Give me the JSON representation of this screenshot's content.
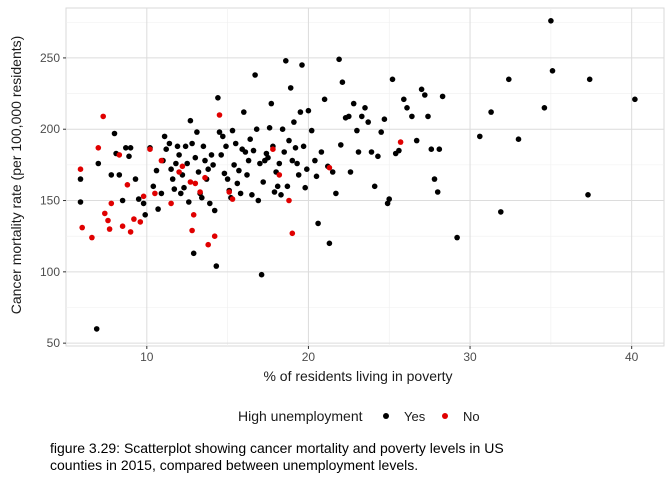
{
  "chart_data": {
    "type": "scatter",
    "xlabel": "% of residents living in poverty",
    "ylabel": "Cancer mortality rate (per 100,000 residents)",
    "xlim": [
      5,
      42
    ],
    "ylim": [
      48,
      285
    ],
    "x_ticks": [
      10,
      20,
      30,
      40
    ],
    "y_ticks": [
      50,
      100,
      150,
      200,
      250
    ],
    "x_tick_labels": [
      "10",
      "20",
      "30",
      "40"
    ],
    "y_tick_labels": [
      "50",
      "100",
      "150",
      "200",
      "250"
    ],
    "grid": true,
    "legend": {
      "title": "High unemployment",
      "position": "bottom",
      "entries": [
        {
          "label": "Yes",
          "color": "#000000"
        },
        {
          "label": "No",
          "color": "#e00000"
        }
      ]
    },
    "series": [
      {
        "name": "Yes",
        "color": "#000000",
        "points": [
          [
            6.9,
            60
          ],
          [
            5.9,
            165
          ],
          [
            5.9,
            149
          ],
          [
            7.0,
            176
          ],
          [
            7.8,
            168
          ],
          [
            8.0,
            197
          ],
          [
            8.1,
            183
          ],
          [
            8.3,
            168
          ],
          [
            8.5,
            150
          ],
          [
            8.7,
            187
          ],
          [
            8.9,
            181
          ],
          [
            9.0,
            187
          ],
          [
            9.3,
            165
          ],
          [
            9.5,
            151
          ],
          [
            9.8,
            148
          ],
          [
            9.9,
            140
          ],
          [
            10.2,
            187
          ],
          [
            10.4,
            160
          ],
          [
            10.6,
            171
          ],
          [
            10.7,
            144
          ],
          [
            10.9,
            155
          ],
          [
            11.0,
            178
          ],
          [
            11.1,
            195
          ],
          [
            11.2,
            186
          ],
          [
            11.4,
            190
          ],
          [
            11.5,
            172
          ],
          [
            11.6,
            165
          ],
          [
            11.7,
            158
          ],
          [
            11.8,
            176
          ],
          [
            11.9,
            188
          ],
          [
            12.0,
            182
          ],
          [
            12.1,
            155
          ],
          [
            12.2,
            168
          ],
          [
            12.3,
            159
          ],
          [
            12.4,
            188
          ],
          [
            12.5,
            176
          ],
          [
            12.6,
            149
          ],
          [
            12.7,
            206
          ],
          [
            12.8,
            190
          ],
          [
            12.9,
            113
          ],
          [
            13.0,
            180
          ],
          [
            13.1,
            198
          ],
          [
            13.2,
            170
          ],
          [
            13.3,
            155
          ],
          [
            13.4,
            152
          ],
          [
            13.5,
            188
          ],
          [
            13.6,
            178
          ],
          [
            13.7,
            165
          ],
          [
            13.8,
            172
          ],
          [
            13.9,
            148
          ],
          [
            14.0,
            182
          ],
          [
            14.1,
            175
          ],
          [
            14.2,
            143
          ],
          [
            14.3,
            104
          ],
          [
            14.4,
            222
          ],
          [
            14.5,
            198
          ],
          [
            14.6,
            182
          ],
          [
            14.7,
            195
          ],
          [
            14.8,
            169
          ],
          [
            14.9,
            188
          ],
          [
            15.0,
            165
          ],
          [
            15.1,
            157
          ],
          [
            15.2,
            152
          ],
          [
            15.3,
            199
          ],
          [
            15.4,
            175
          ],
          [
            15.5,
            190
          ],
          [
            15.6,
            162
          ],
          [
            15.7,
            171
          ],
          [
            15.8,
            155
          ],
          [
            15.9,
            186
          ],
          [
            16.0,
            212
          ],
          [
            16.1,
            184
          ],
          [
            16.2,
            168
          ],
          [
            16.3,
            178
          ],
          [
            16.4,
            193
          ],
          [
            16.5,
            154
          ],
          [
            16.6,
            185
          ],
          [
            16.7,
            238
          ],
          [
            16.8,
            200
          ],
          [
            16.9,
            150
          ],
          [
            17.0,
            176
          ],
          [
            17.1,
            98
          ],
          [
            17.2,
            163
          ],
          [
            17.3,
            178
          ],
          [
            17.4,
            183
          ],
          [
            17.5,
            180
          ],
          [
            17.6,
            201
          ],
          [
            17.7,
            218
          ],
          [
            17.8,
            188
          ],
          [
            17.9,
            156
          ],
          [
            18.0,
            170
          ],
          [
            18.1,
            160
          ],
          [
            18.2,
            176
          ],
          [
            18.3,
            154
          ],
          [
            18.4,
            200
          ],
          [
            18.5,
            184
          ],
          [
            18.6,
            248
          ],
          [
            18.7,
            160
          ],
          [
            18.8,
            192
          ],
          [
            18.9,
            229
          ],
          [
            19.0,
            178
          ],
          [
            19.1,
            205
          ],
          [
            19.2,
            187
          ],
          [
            19.3,
            176
          ],
          [
            19.4,
            168
          ],
          [
            19.5,
            212
          ],
          [
            19.6,
            245
          ],
          [
            19.7,
            188
          ],
          [
            19.8,
            159
          ],
          [
            19.9,
            172
          ],
          [
            20.0,
            213
          ],
          [
            20.2,
            199
          ],
          [
            20.4,
            178
          ],
          [
            20.5,
            167
          ],
          [
            20.6,
            134
          ],
          [
            20.8,
            184
          ],
          [
            21.0,
            221
          ],
          [
            21.2,
            174
          ],
          [
            21.3,
            120
          ],
          [
            21.5,
            170
          ],
          [
            21.7,
            155
          ],
          [
            21.9,
            249
          ],
          [
            22.0,
            189
          ],
          [
            22.1,
            233
          ],
          [
            22.3,
            208
          ],
          [
            22.5,
            209
          ],
          [
            22.6,
            170
          ],
          [
            22.8,
            218
          ],
          [
            23.0,
            199
          ],
          [
            23.1,
            184
          ],
          [
            23.3,
            209
          ],
          [
            23.5,
            215
          ],
          [
            23.7,
            205
          ],
          [
            23.9,
            184
          ],
          [
            24.1,
            160
          ],
          [
            24.3,
            181
          ],
          [
            24.5,
            198
          ],
          [
            24.7,
            207
          ],
          [
            24.9,
            148
          ],
          [
            25.0,
            151
          ],
          [
            25.2,
            235
          ],
          [
            25.4,
            183
          ],
          [
            25.6,
            185
          ],
          [
            25.9,
            221
          ],
          [
            26.1,
            215
          ],
          [
            26.4,
            209
          ],
          [
            26.7,
            192
          ],
          [
            27.0,
            228
          ],
          [
            27.2,
            224
          ],
          [
            27.4,
            209
          ],
          [
            27.6,
            186
          ],
          [
            27.8,
            165
          ],
          [
            28.0,
            156
          ],
          [
            28.1,
            186
          ],
          [
            28.3,
            223
          ],
          [
            29.2,
            124
          ],
          [
            30.6,
            195
          ],
          [
            31.3,
            212
          ],
          [
            31.9,
            142
          ],
          [
            32.4,
            235
          ],
          [
            33.0,
            193
          ],
          [
            34.6,
            215
          ],
          [
            35.0,
            276
          ],
          [
            35.1,
            241
          ],
          [
            37.3,
            154
          ],
          [
            37.4,
            235
          ],
          [
            40.2,
            221
          ]
        ]
      },
      {
        "name": "No",
        "color": "#e00000",
        "points": [
          [
            5.9,
            172
          ],
          [
            6.0,
            131
          ],
          [
            6.6,
            124
          ],
          [
            7.0,
            187
          ],
          [
            7.3,
            209
          ],
          [
            7.4,
            141
          ],
          [
            7.6,
            136
          ],
          [
            7.7,
            130
          ],
          [
            7.8,
            148
          ],
          [
            8.3,
            182
          ],
          [
            8.5,
            132
          ],
          [
            8.8,
            161
          ],
          [
            9.0,
            128
          ],
          [
            9.2,
            137
          ],
          [
            9.6,
            135
          ],
          [
            9.8,
            153
          ],
          [
            10.2,
            186
          ],
          [
            10.5,
            155
          ],
          [
            10.9,
            178
          ],
          [
            11.5,
            148
          ],
          [
            12.0,
            170
          ],
          [
            12.2,
            174
          ],
          [
            12.7,
            163
          ],
          [
            12.8,
            129
          ],
          [
            12.9,
            140
          ],
          [
            13.0,
            162
          ],
          [
            13.3,
            156
          ],
          [
            13.6,
            166
          ],
          [
            13.8,
            119
          ],
          [
            14.2,
            125
          ],
          [
            14.5,
            210
          ],
          [
            15.1,
            156
          ],
          [
            15.3,
            151
          ],
          [
            17.8,
            186
          ],
          [
            18.2,
            168
          ],
          [
            18.8,
            150
          ],
          [
            19.0,
            127
          ],
          [
            21.3,
            173
          ],
          [
            25.7,
            191
          ]
        ]
      }
    ]
  },
  "caption": "figure 3.29: Scatterplot showing cancer mortality and poverty levels in US counties in 2015, compared between unemployment levels."
}
